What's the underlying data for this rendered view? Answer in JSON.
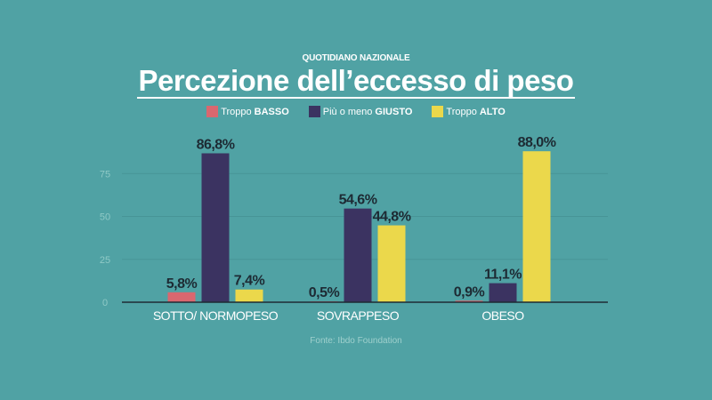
{
  "publisher": "QUOTIDIANO NAZIONALE",
  "chart_data": {
    "type": "bar",
    "title": "Percezione dell’eccesso di peso",
    "categories": [
      "SOTTO/ NORMOPESO",
      "SOVRAPPESO",
      "OBESO"
    ],
    "series": [
      {
        "name": "Troppo BASSO",
        "name_light": "Troppo",
        "name_bold": "BASSO",
        "color": "#d9676f",
        "values": [
          5.8,
          0.5,
          0.9
        ],
        "labels": [
          "5,8%",
          "0,5%",
          "0,9%"
        ]
      },
      {
        "name": "Più o meno GIUSTO",
        "name_light": "Più o meno",
        "name_bold": "GIUSTO",
        "color": "#3b3361",
        "values": [
          86.8,
          54.6,
          11.1
        ],
        "labels": [
          "86,8%",
          "54,6%",
          "11,1%"
        ]
      },
      {
        "name": "Troppo ALTO",
        "name_light": "Troppo",
        "name_bold": "ALTO",
        "color": "#ebd84b",
        "values": [
          7.4,
          44.8,
          88.0
        ],
        "labels": [
          "7,4%",
          "44,8%",
          "88,0%"
        ]
      }
    ],
    "yticks": [
      0,
      25,
      50,
      75
    ],
    "ylim": [
      0,
      95
    ],
    "grid": true,
    "legend": "top-center",
    "xlabel": "",
    "ylabel": "",
    "source": "Fonte: Ibdo Foundation"
  }
}
